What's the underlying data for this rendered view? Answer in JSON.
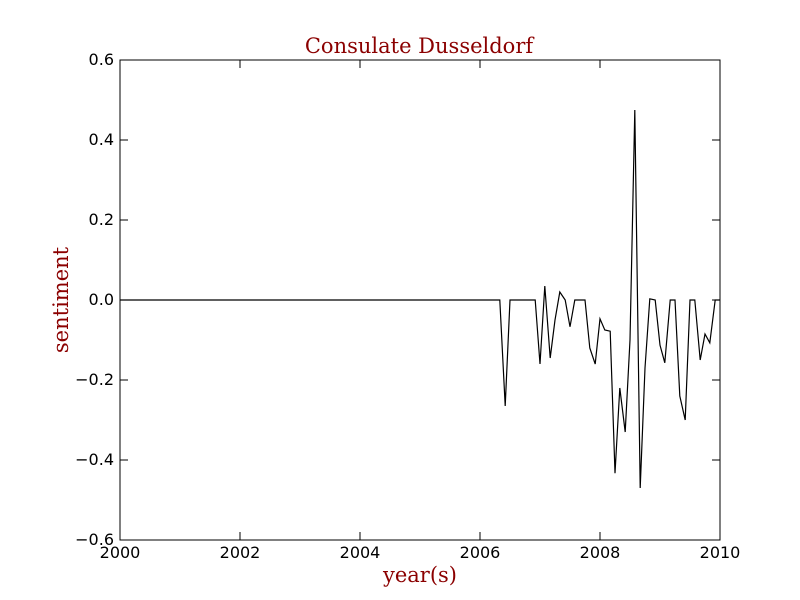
{
  "chart_data": {
    "type": "line",
    "title": "Consulate Dusseldorf",
    "xlabel": "year(s)",
    "ylabel": "sentiment",
    "xlim": [
      2000,
      2010
    ],
    "ylim": [
      -0.6,
      0.6
    ],
    "xticks": [
      2000,
      2002,
      2004,
      2006,
      2008,
      2010
    ],
    "yticks": [
      -0.6,
      -0.4,
      -0.2,
      0.0,
      0.2,
      0.4,
      0.6
    ],
    "xtick_labels": [
      "2000",
      "2002",
      "2004",
      "2006",
      "2008",
      "2010"
    ],
    "ytick_labels": [
      "−0.6",
      "−0.4",
      "−0.2",
      "0.0",
      "0.2",
      "0.4",
      "0.6"
    ],
    "grid": false,
    "colors": {
      "line": "#000000",
      "label": "#8b0000"
    },
    "series": [
      {
        "x": [
          2000.0,
          2006.33,
          2006.42,
          2006.5,
          2006.58,
          2006.67,
          2006.75,
          2006.83,
          2006.92,
          2007.0,
          2007.08,
          2007.17,
          2007.25,
          2007.33,
          2007.42,
          2007.5,
          2007.58,
          2007.67,
          2007.75,
          2007.83,
          2007.92,
          2008.0,
          2008.08,
          2008.17,
          2008.25,
          2008.33,
          2008.42,
          2008.5,
          2008.58,
          2008.67,
          2008.75,
          2008.83,
          2008.92,
          2009.0,
          2009.08,
          2009.17,
          2009.25,
          2009.33,
          2009.42,
          2009.5,
          2009.58,
          2009.67,
          2009.75,
          2009.83,
          2009.92,
          2010.0
        ],
        "y": [
          0.0,
          0.0,
          -0.265,
          0.0,
          0.0,
          0.0,
          0.0,
          0.0,
          0.0,
          -0.16,
          0.035,
          -0.145,
          -0.05,
          0.02,
          0.0,
          -0.067,
          0.0,
          0.0,
          0.0,
          -0.12,
          -0.16,
          -0.047,
          -0.075,
          -0.078,
          -0.433,
          -0.22,
          -0.33,
          -0.1,
          0.475,
          -0.47,
          -0.17,
          0.003,
          0.0,
          -0.113,
          -0.157,
          0.0,
          0.0,
          -0.24,
          -0.3,
          0.0,
          0.0,
          -0.15,
          -0.085,
          -0.107,
          0.0,
          0.0
        ]
      }
    ]
  }
}
